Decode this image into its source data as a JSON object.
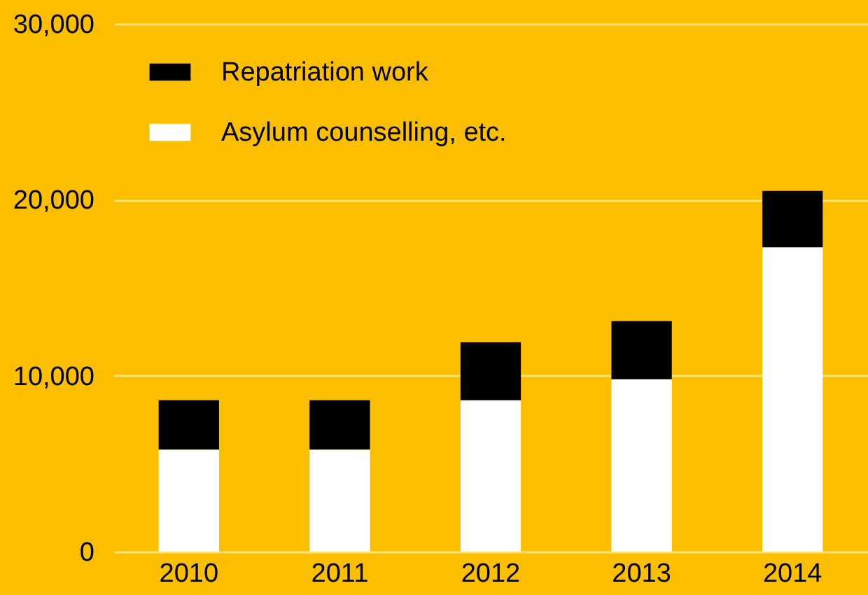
{
  "chart_data": {
    "type": "bar",
    "stacked": true,
    "categories": [
      "2010",
      "2011",
      "2012",
      "2013",
      "2014"
    ],
    "series": [
      {
        "name": "Asylum counselling, etc.",
        "color": "#ffffff",
        "values": [
          5800,
          5800,
          8600,
          9800,
          17300
        ]
      },
      {
        "name": "Repatriation work",
        "color": "#000000",
        "values": [
          2800,
          2800,
          3300,
          3300,
          3200
        ]
      }
    ],
    "ylim": [
      0,
      30000
    ],
    "yticks": [
      {
        "value": 0,
        "label": "0"
      },
      {
        "value": 10000,
        "label": "10,000"
      },
      {
        "value": 20000,
        "label": "20,000"
      },
      {
        "value": 30000,
        "label": "30,000"
      }
    ],
    "grid": "y",
    "legend": "top left"
  }
}
